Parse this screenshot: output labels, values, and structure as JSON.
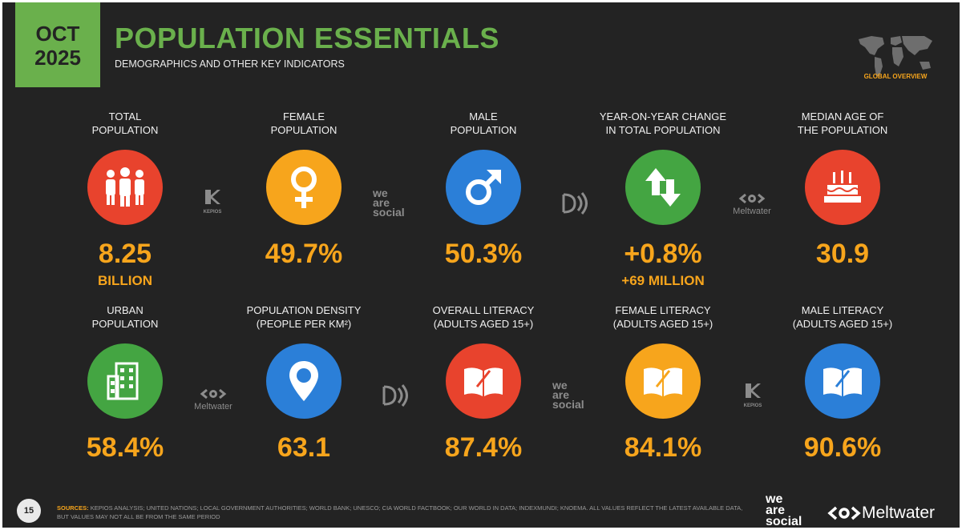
{
  "badge": {
    "month": "OCT",
    "year": "2025"
  },
  "header": {
    "title": "POPULATION ESSENTIALS",
    "subtitle": "DEMOGRAPHICS AND OTHER KEY INDICATORS",
    "section": "GLOBAL OVERVIEW"
  },
  "stats": [
    {
      "label1": "TOTAL",
      "label2": "POPULATION",
      "value": "8.25",
      "sub": "BILLION",
      "color": "#e8432d",
      "icon": "people-icon"
    },
    {
      "label1": "FEMALE",
      "label2": "POPULATION",
      "value": "49.7%",
      "sub": "",
      "color": "#f7a51c",
      "icon": "female-symbol-icon"
    },
    {
      "label1": "MALE",
      "label2": "POPULATION",
      "value": "50.3%",
      "sub": "",
      "color": "#2b7fd8",
      "icon": "male-symbol-icon"
    },
    {
      "label1": "YEAR-ON-YEAR CHANGE",
      "label2": "IN TOTAL POPULATION",
      "value": "+0.8%",
      "sub": "+69 MILLION",
      "color": "#44a542",
      "icon": "up-down-arrows-icon"
    },
    {
      "label1": "MEDIAN AGE OF",
      "label2": "THE POPULATION",
      "value": "30.9",
      "sub": "",
      "color": "#e8432d",
      "icon": "birthday-cake-icon"
    },
    {
      "label1": "URBAN",
      "label2": "POPULATION",
      "value": "58.4%",
      "sub": "",
      "color": "#44a542",
      "icon": "building-icon"
    },
    {
      "label1": "POPULATION DENSITY",
      "label2": "(PEOPLE PER KM²)",
      "value": "63.1",
      "sub": "",
      "color": "#2b7fd8",
      "icon": "location-pin-icon"
    },
    {
      "label1": "OVERALL LITERACY",
      "label2": "(ADULTS AGED 15+)",
      "value": "87.4%",
      "sub": "",
      "color": "#e8432d",
      "icon": "book-icon"
    },
    {
      "label1": "FEMALE LITERACY",
      "label2": "(ADULTS AGED 15+)",
      "value": "84.1%",
      "sub": "",
      "color": "#f7a51c",
      "icon": "book-icon"
    },
    {
      "label1": "MALE LITERACY",
      "label2": "(ADULTS AGED 15+)",
      "value": "90.6%",
      "sub": "",
      "color": "#2b7fd8",
      "icon": "book-icon"
    }
  ],
  "logos": {
    "kepios": "KEPIOS",
    "we": "we",
    "are": "are",
    "social": "social",
    "meltwater": "Meltwater"
  },
  "footer": {
    "page": "15",
    "sources_label": "SOURCES:",
    "sources_text": "KEPIOS ANALYSIS; UNITED NATIONS; LOCAL GOVERNMENT AUTHORITIES; WORLD BANK; UNESCO; CIA WORLD FACTBOOK; OUR WORLD IN DATA; INDEXMUNDI; KNOEMA. ALL VALUES REFLECT THE LATEST AVAILABLE DATA, BUT VALUES MAY NOT ALL BE FROM THE SAME PERIOD"
  }
}
